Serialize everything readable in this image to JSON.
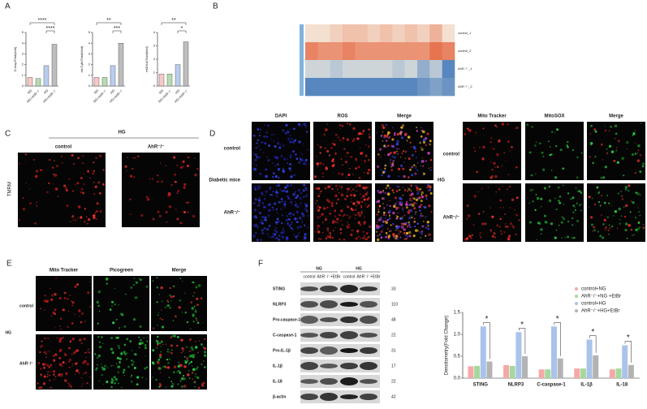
{
  "panel_letters": [
    "A",
    "B",
    "C",
    "D",
    "E",
    "F"
  ],
  "chart_data": [
    {
      "type": "bar",
      "y_label": "D-loop/Total(fold)",
      "categories": [
        "NG",
        "NG+AhR⁻/⁻",
        "HG",
        "HG+AhR⁻/⁻"
      ],
      "values": [
        0.8,
        0.7,
        1.9,
        3.9
      ],
      "colors": [
        "#f6c9c4",
        "#b7dcb0",
        "#b9cdee",
        "#bdbdbd"
      ],
      "ylim": [
        0,
        5
      ],
      "yticks": [
        0,
        1,
        2,
        3,
        4,
        5
      ],
      "annotations": [
        "****",
        "****"
      ]
    },
    {
      "type": "bar",
      "y_label": "mt-Cytb/Total(fold)",
      "categories": [
        "NG",
        "NG+AhR⁻/⁻",
        "HG",
        "HG+AhR⁻/⁻"
      ],
      "values": [
        0.8,
        0.8,
        1.9,
        4.0
      ],
      "colors": [
        "#f6c9c4",
        "#b7dcb0",
        "#b9cdee",
        "#bdbdbd"
      ],
      "ylim": [
        0,
        5
      ],
      "yticks": [
        0,
        1,
        2,
        3,
        4,
        5
      ],
      "annotations": [
        "**",
        "***"
      ]
    },
    {
      "type": "bar",
      "y_label": "mtDNA/Total(fold)",
      "categories": [
        "NG",
        "NG+AhR⁻/⁻",
        "HG",
        "HG+AhR⁻/⁻"
      ],
      "values": [
        0.9,
        0.9,
        1.6,
        3.3
      ],
      "colors": [
        "#f6c9c4",
        "#b7dcb0",
        "#b9cdee",
        "#bdbdbd"
      ],
      "ylim": [
        0,
        4
      ],
      "yticks": [
        0,
        1,
        2,
        3,
        4
      ],
      "annotations": [
        "**",
        "*"
      ]
    },
    {
      "type": "heatmap",
      "rows": [
        "control_1",
        "control_2",
        "AhR⁻/⁻_1",
        "AhR⁻/⁻_2"
      ],
      "categories": [
        null,
        null,
        null,
        null,
        null,
        null,
        null,
        null,
        null,
        null,
        null,
        null
      ],
      "values": [
        [
          0.1,
          0.1,
          0.2,
          0.3,
          0.3,
          0.2,
          0.3,
          0.2,
          0.3,
          0.2,
          0.4,
          0.1
        ],
        [
          0.7,
          0.6,
          0.6,
          0.7,
          0.6,
          0.6,
          0.6,
          0.6,
          0.6,
          0.6,
          0.8,
          0.7
        ],
        [
          -0.2,
          -0.2,
          -0.3,
          -0.2,
          -0.2,
          -0.2,
          -0.2,
          -0.3,
          -0.2,
          -0.5,
          -0.3,
          -0.8
        ],
        [
          -0.8,
          -0.8,
          -0.8,
          -0.8,
          -0.8,
          -0.8,
          -0.8,
          -0.8,
          -0.8,
          -0.7,
          -0.6,
          -0.7
        ]
      ],
      "zlim": [
        -1,
        1
      ],
      "colors": [
        "#2f6db5",
        "#f6efe2",
        "#e2552c"
      ]
    },
    {
      "type": "bar",
      "y_label": "Densitometry(Fold Change)",
      "categories": [
        "STING",
        "NLRP3",
        "C-caspase-1",
        "IL-1β",
        "IL-18"
      ],
      "series": [
        {
          "name": "control+NG",
          "color": "#f4a9a6",
          "values": [
            0.27,
            0.3,
            0.2,
            0.22,
            0.2
          ]
        },
        {
          "name": "AhR⁻/⁻+NG +EtBr",
          "color": "#a6d89e",
          "values": [
            0.28,
            0.28,
            0.2,
            0.22,
            0.22
          ]
        },
        {
          "name": "control+HG",
          "color": "#a9c3ea",
          "values": [
            1.18,
            1.05,
            1.18,
            0.88,
            0.75
          ]
        },
        {
          "name": "AhR⁻/⁻+HG+EtBr",
          "color": "#b3b3b3",
          "values": [
            0.38,
            0.5,
            0.45,
            0.52,
            0.3
          ]
        }
      ],
      "ylim": [
        0,
        1.5
      ],
      "yticks": [
        {
          "value": 0,
          "label": "0.0"
        },
        {
          "value": 0.5,
          "label": "0.5"
        },
        {
          "value": 1,
          "label": "1.0"
        },
        {
          "value": 1.5,
          "label": "1.5"
        }
      ],
      "annotations": [
        "*",
        "*",
        "*",
        "*",
        "*"
      ],
      "legend": "upper right"
    }
  ],
  "panel_c": {
    "group": "HG",
    "columns": [
      "control",
      "AhR⁻/⁻"
    ],
    "y_label": "TMRM"
  },
  "panel_d_ros": {
    "columns": [
      "DAPI",
      "ROS",
      "Merge"
    ],
    "rows": [
      "control",
      "AhR⁻/⁻"
    ],
    "row_group": "Diabetic mice"
  },
  "panel_d_mito": {
    "columns": [
      "Mito Tracker",
      "MitoSOX",
      "Merge"
    ],
    "rows": [
      "control",
      "AhR⁻/⁻"
    ],
    "row_group": "HG"
  },
  "panel_e": {
    "columns": [
      "Mito Tracker",
      "Picogreen",
      "Merge"
    ],
    "rows": [
      "control",
      "AhR⁻/⁻"
    ],
    "row_group": "HG"
  },
  "panel_f_blot": {
    "groups": [
      "NG",
      "HG"
    ],
    "lanes": [
      "control",
      "AhR⁻/⁻+EtBr",
      "control",
      "AhR⁻/⁻+EtBr"
    ],
    "proteins": [
      "STING",
      "NLRP3",
      "Pro-caspase-1",
      "C-caspase-1",
      "Pro-IL-1β",
      "IL-1β",
      "IL-18",
      "β-actin"
    ],
    "kda": [
      33,
      110,
      48,
      22,
      31,
      17,
      22,
      42
    ]
  }
}
